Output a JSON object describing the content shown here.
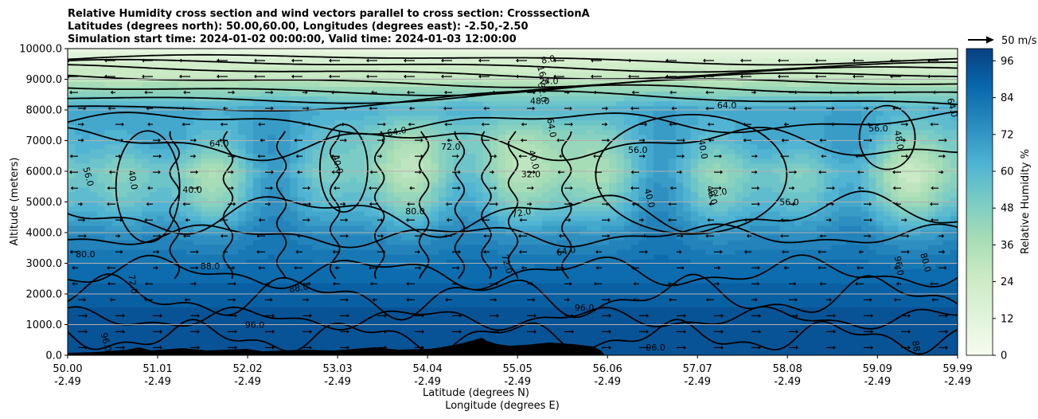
{
  "chart_data": {
    "type": "heatmap",
    "subtype": "filled contour cross-section with contour lines and wind vectors",
    "title": [
      "Relative Humidity cross section and wind vectors parallel to cross section: CrosssectionA",
      "Latitudes (degrees north): 50.00,60.00, Longitudes (degrees east): -2.50,-2.50",
      "Simulation start time: 2024-01-02 00:00:00, Valid time: 2024-01-03 12:00:00"
    ],
    "xlabel_lat": "Latitude (degrees N)",
    "xlabel_lon": "Longitude (degrees E)",
    "ylabel": "Altitude (meters)",
    "x_ticks": [
      {
        "lat": "50.00",
        "lon": "-2.49",
        "value": 50.0
      },
      {
        "lat": "51.01",
        "lon": "-2.49",
        "value": 51.01
      },
      {
        "lat": "52.02",
        "lon": "-2.49",
        "value": 52.02
      },
      {
        "lat": "53.03",
        "lon": "-2.49",
        "value": 53.03
      },
      {
        "lat": "54.04",
        "lon": "-2.49",
        "value": 54.04
      },
      {
        "lat": "55.05",
        "lon": "-2.49",
        "value": 55.05
      },
      {
        "lat": "56.06",
        "lon": "-2.49",
        "value": 56.06
      },
      {
        "lat": "57.07",
        "lon": "-2.49",
        "value": 57.07
      },
      {
        "lat": "58.08",
        "lon": "-2.49",
        "value": 58.08
      },
      {
        "lat": "59.09",
        "lon": "-2.49",
        "value": 59.09
      },
      {
        "lat": "59.99",
        "lon": "-2.49",
        "value": 59.99
      }
    ],
    "xlim": [
      50.0,
      59.99
    ],
    "y_ticks": [
      "0.0",
      "1000.0",
      "2000.0",
      "3000.0",
      "4000.0",
      "5000.0",
      "6000.0",
      "7000.0",
      "8000.0",
      "9000.0",
      "10000.0"
    ],
    "ylim": [
      0,
      10000
    ],
    "grid": "horizontal",
    "colorbar": {
      "label": "Relative Humidity %",
      "ticks": [
        "0",
        "12",
        "24",
        "36",
        "48",
        "60",
        "72",
        "84",
        "96"
      ],
      "range": [
        0,
        100
      ],
      "levels": 25,
      "colormap": "GnBu",
      "colors": [
        "#f7fcf0",
        "#e0f3db",
        "#ccebc5",
        "#a8ddb5",
        "#7bccc4",
        "#4eb3d3",
        "#2b8cbe",
        "#0868ac",
        "#084081"
      ]
    },
    "vector_key": {
      "label": "50 m/s",
      "value": 50
    },
    "rh_profile": {
      "altitude_m": [
        0,
        1000,
        2000,
        3000,
        4000,
        5000,
        6000,
        7000,
        8000,
        9000,
        10000
      ],
      "humidity_pct": [
        96,
        94,
        90,
        84,
        74,
        56,
        46,
        54,
        64,
        30,
        10
      ]
    },
    "contour_levels": [
      "8.0",
      "16.0",
      "24.0",
      "32.0",
      "40.0",
      "48.0",
      "56.0",
      "64.0",
      "72.0",
      "80.0",
      "88.0",
      "96.0"
    ],
    "contour_labels": [
      {
        "text": "8.0",
        "lat": 55.4,
        "alt": 9550
      },
      {
        "text": "16.0",
        "lat": 55.3,
        "alt": 9100
      },
      {
        "text": "24.0",
        "lat": 55.4,
        "alt": 8850
      },
      {
        "text": "32.0",
        "lat": 55.3,
        "alt": 8550
      },
      {
        "text": "48.0",
        "lat": 55.3,
        "alt": 8200
      },
      {
        "text": "56.0",
        "lat": 50.2,
        "alt": 5800
      },
      {
        "text": "40.0",
        "lat": 50.7,
        "alt": 5700
      },
      {
        "text": "64.0",
        "lat": 51.7,
        "alt": 6800
      },
      {
        "text": "40.0",
        "lat": 51.4,
        "alt": 5300
      },
      {
        "text": "40.0",
        "lat": 53.0,
        "alt": 6200
      },
      {
        "text": "64.0",
        "lat": 53.7,
        "alt": 7200
      },
      {
        "text": "72.0",
        "lat": 54.3,
        "alt": 6700
      },
      {
        "text": "64.0",
        "lat": 55.4,
        "alt": 7400
      },
      {
        "text": "40.0",
        "lat": 55.2,
        "alt": 6350
      },
      {
        "text": "32.0",
        "lat": 55.2,
        "alt": 5800
      },
      {
        "text": "72.0",
        "lat": 55.1,
        "alt": 4550
      },
      {
        "text": "56.0",
        "lat": 56.4,
        "alt": 6600
      },
      {
        "text": "40.0",
        "lat": 56.5,
        "alt": 5100
      },
      {
        "text": "40.0",
        "lat": 57.1,
        "alt": 6700
      },
      {
        "text": "64.0",
        "lat": 57.4,
        "alt": 8050
      },
      {
        "text": "32.0",
        "lat": 57.3,
        "alt": 5200
      },
      {
        "text": "40.0",
        "lat": 57.2,
        "alt": 5200
      },
      {
        "text": "56.0",
        "lat": 58.1,
        "alt": 4900
      },
      {
        "text": "56.0",
        "lat": 59.1,
        "alt": 7300
      },
      {
        "text": "48.0",
        "lat": 59.3,
        "alt": 7000
      },
      {
        "text": "64.0",
        "lat": 59.9,
        "alt": 8050
      },
      {
        "text": "80.0",
        "lat": 50.2,
        "alt": 3200
      },
      {
        "text": "72.0",
        "lat": 50.7,
        "alt": 2300
      },
      {
        "text": "80.0",
        "lat": 53.9,
        "alt": 4600
      },
      {
        "text": "72.0",
        "lat": 54.9,
        "alt": 2950
      },
      {
        "text": "64.0",
        "lat": 55.6,
        "alt": 3300
      },
      {
        "text": "96.0",
        "lat": 55.8,
        "alt": 1450
      },
      {
        "text": "96.0",
        "lat": 52.1,
        "alt": 900
      },
      {
        "text": "96.0",
        "lat": 50.4,
        "alt": 400
      },
      {
        "text": "88.0",
        "lat": 51.6,
        "alt": 2800
      },
      {
        "text": "88.0",
        "lat": 52.6,
        "alt": 2100
      },
      {
        "text": "96.0",
        "lat": 59.3,
        "alt": 2900
      },
      {
        "text": "80.0",
        "lat": 59.6,
        "alt": 3000
      },
      {
        "text": "96.0",
        "lat": 56.6,
        "alt": 150
      },
      {
        "text": "88.0",
        "lat": 59.5,
        "alt": 150
      }
    ]
  }
}
